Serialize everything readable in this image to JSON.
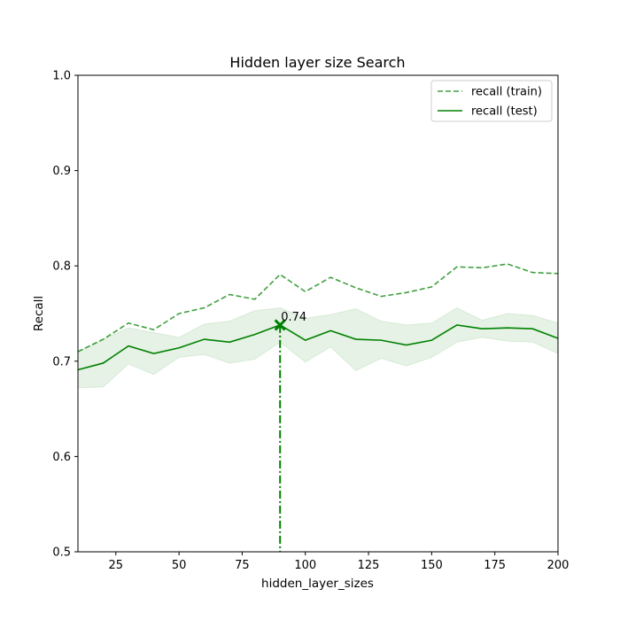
{
  "chart_data": {
    "type": "line",
    "title": "Hidden layer size Search",
    "xlabel": "hidden_layer_sizes",
    "ylabel": "Recall",
    "xlim": [
      10,
      200
    ],
    "ylim": [
      0.5,
      1.0
    ],
    "xticks": [
      25,
      50,
      75,
      100,
      125,
      150,
      175,
      200
    ],
    "yticks": [
      0.5,
      0.6,
      0.7,
      0.8,
      0.9,
      1.0
    ],
    "xtick_labels": [
      "25",
      "50",
      "75",
      "100",
      "125",
      "150",
      "175",
      "200"
    ],
    "ytick_labels": [
      "0.5",
      "0.6",
      "0.7",
      "0.8",
      "0.9",
      "1.0"
    ],
    "grid": false,
    "legend_position": "top-right",
    "color": "#008000",
    "x": [
      10,
      20,
      30,
      40,
      50,
      60,
      70,
      80,
      90,
      100,
      110,
      120,
      130,
      140,
      150,
      160,
      170,
      180,
      190,
      200
    ],
    "series": [
      {
        "name": "recall (train)",
        "style": "dashed",
        "values": [
          0.71,
          0.723,
          0.74,
          0.733,
          0.75,
          0.756,
          0.77,
          0.765,
          0.791,
          0.773,
          0.788,
          0.777,
          0.768,
          0.772,
          0.778,
          0.799,
          0.798,
          0.802,
          0.793,
          0.792
        ]
      },
      {
        "name": "recall (test)",
        "style": "solid",
        "values": [
          0.691,
          0.698,
          0.716,
          0.708,
          0.714,
          0.723,
          0.72,
          0.728,
          0.738,
          0.722,
          0.732,
          0.723,
          0.722,
          0.717,
          0.722,
          0.738,
          0.734,
          0.735,
          0.734,
          0.724
        ],
        "band_lower": [
          0.672,
          0.673,
          0.697,
          0.686,
          0.704,
          0.707,
          0.698,
          0.702,
          0.72,
          0.699,
          0.715,
          0.69,
          0.703,
          0.695,
          0.704,
          0.72,
          0.725,
          0.721,
          0.72,
          0.708
        ],
        "band_upper": [
          0.71,
          0.723,
          0.735,
          0.73,
          0.725,
          0.739,
          0.742,
          0.753,
          0.756,
          0.745,
          0.749,
          0.755,
          0.742,
          0.738,
          0.74,
          0.756,
          0.743,
          0.75,
          0.748,
          0.74
        ]
      }
    ],
    "best": {
      "x": 90,
      "y": 0.738,
      "label": "0.74"
    }
  }
}
